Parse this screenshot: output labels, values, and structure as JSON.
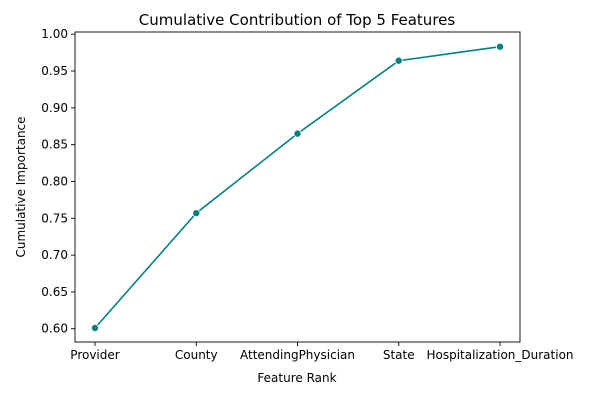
{
  "chart_data": {
    "type": "line",
    "title": "Cumulative Contribution of Top 5 Features",
    "xlabel": "Feature Rank",
    "ylabel": "Cumulative Importance",
    "categories": [
      "Provider",
      "County",
      "AttendingPhysician",
      "State",
      "Hospitalization_Duration"
    ],
    "values": [
      0.601,
      0.757,
      0.865,
      0.964,
      0.983
    ],
    "ylim": [
      0.582,
      1.003
    ],
    "yticks": [
      0.6,
      0.65,
      0.7,
      0.75,
      0.8,
      0.85,
      0.9,
      0.95,
      1.0
    ],
    "ytick_labels": [
      "0.60",
      "0.65",
      "0.70",
      "0.75",
      "0.80",
      "0.85",
      "0.90",
      "0.95",
      "1.00"
    ],
    "grid": false,
    "marker": "circle",
    "color": "#008080"
  }
}
